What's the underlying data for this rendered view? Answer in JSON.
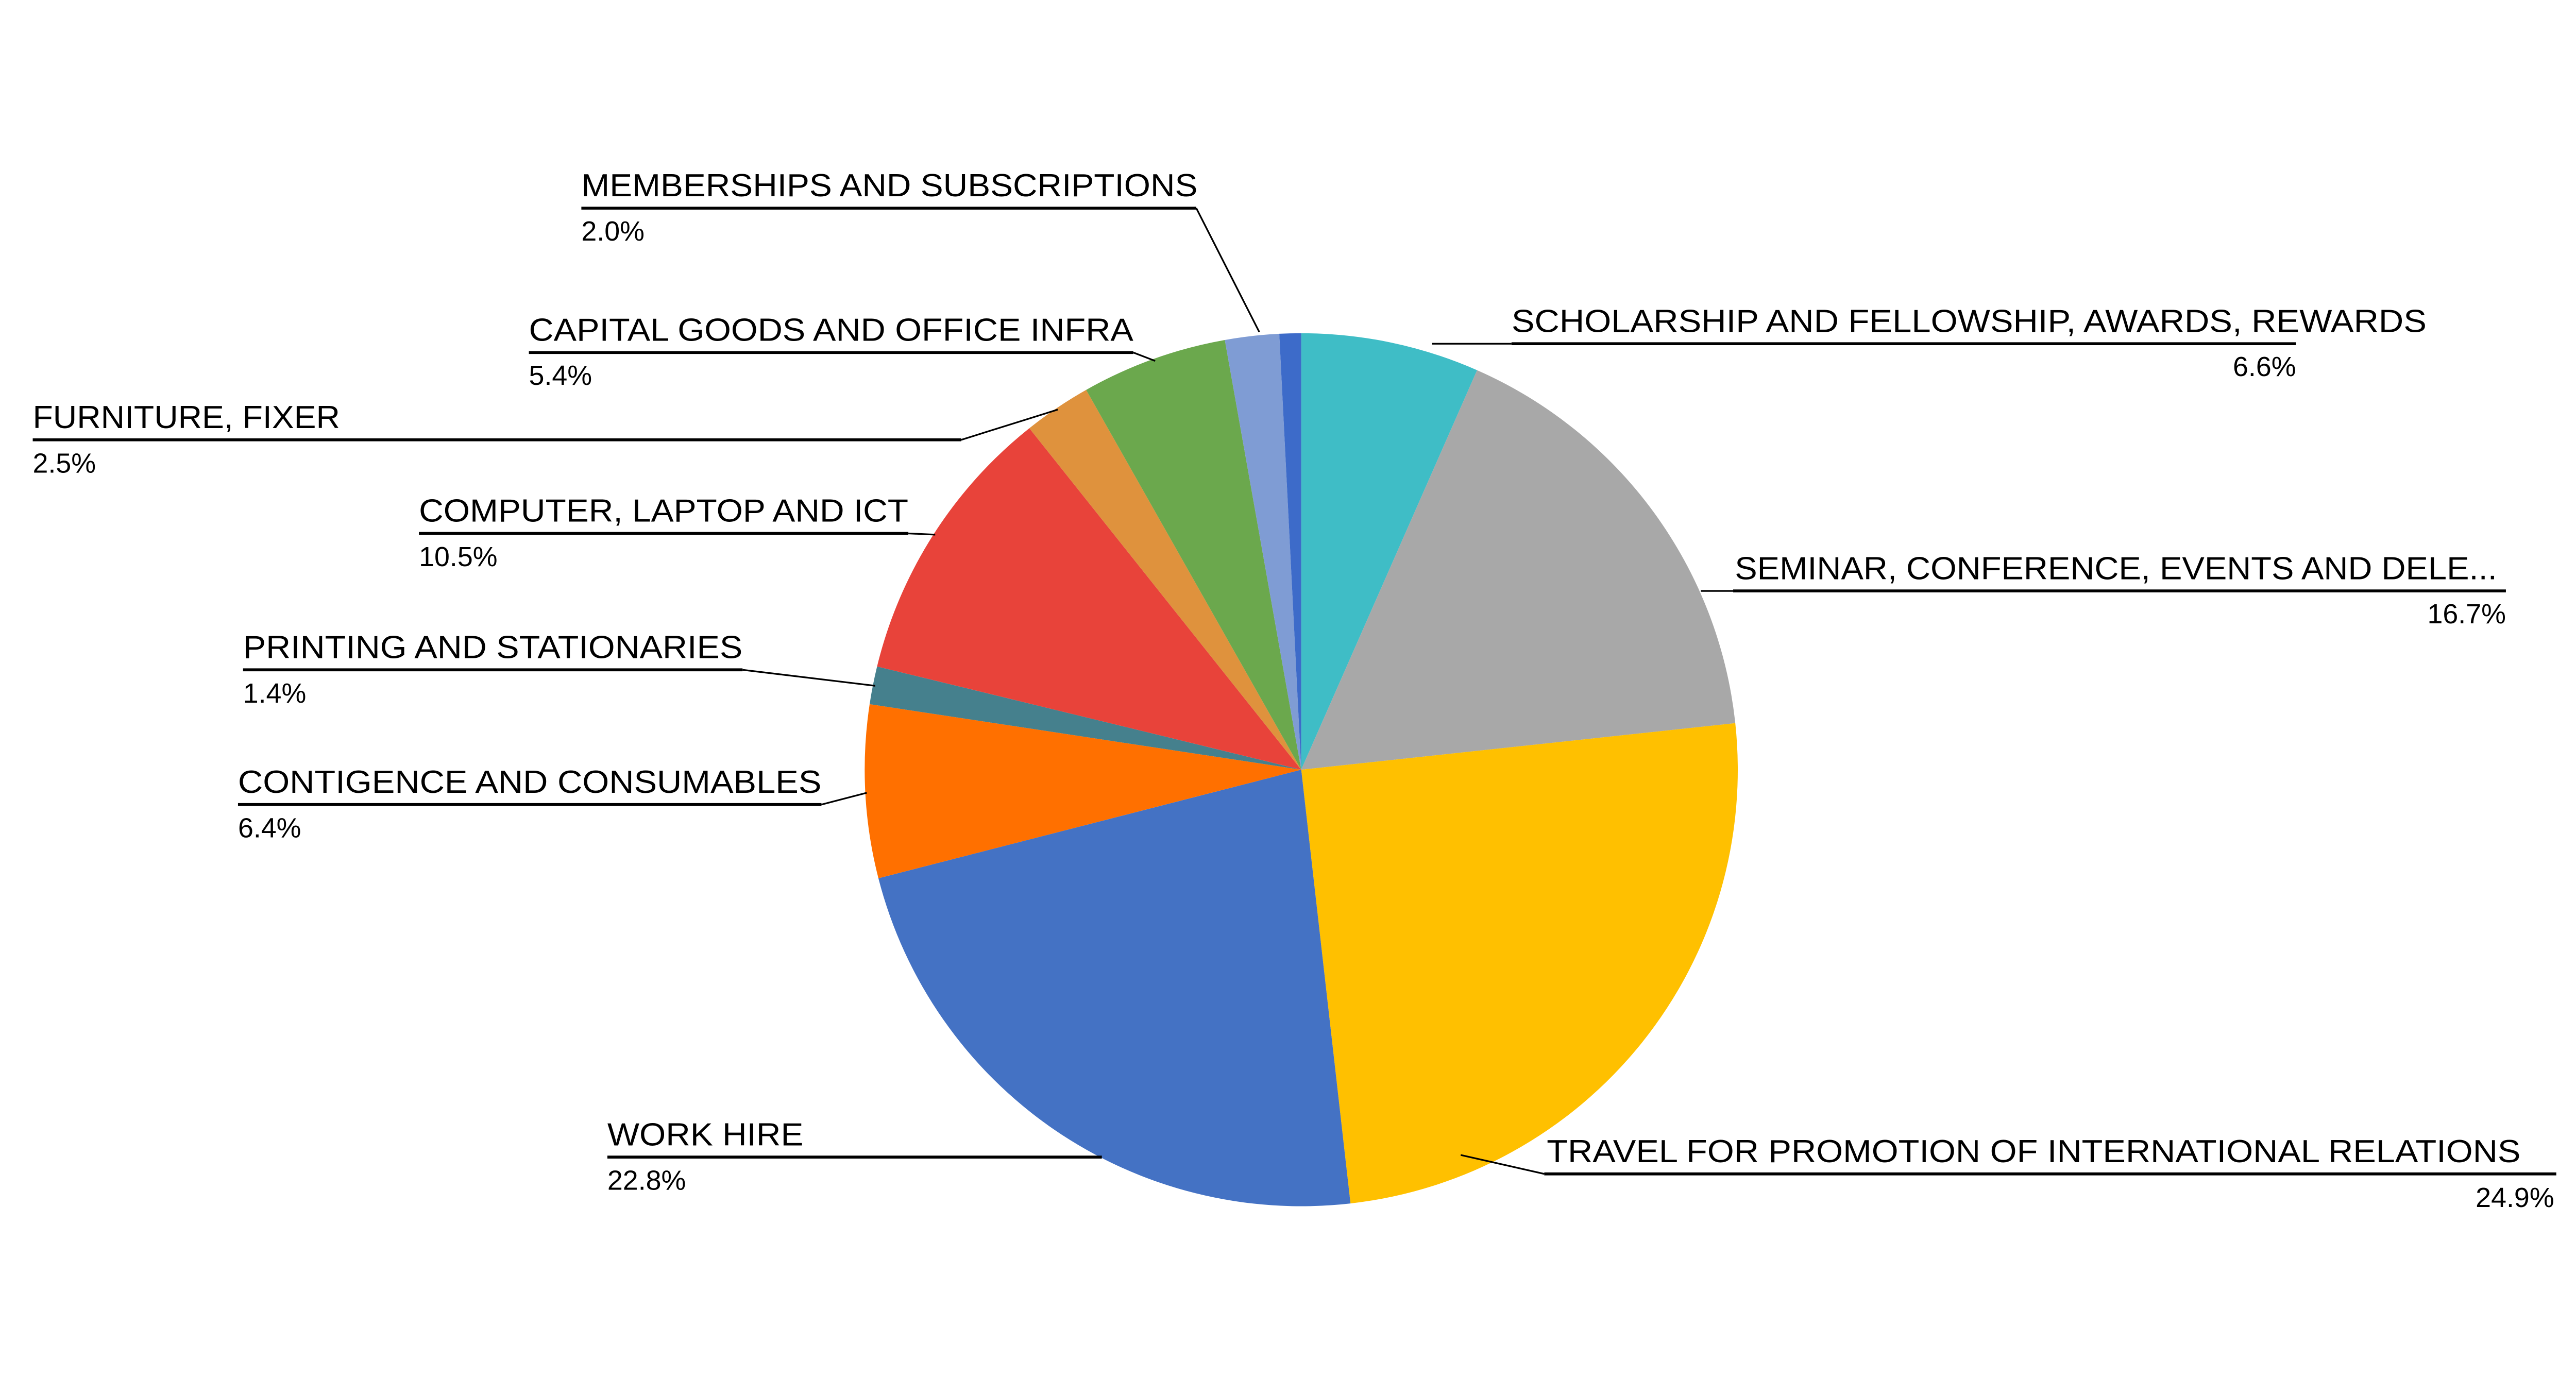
{
  "chart_data": {
    "type": "pie",
    "title": "",
    "legend_position": "none",
    "labels_style": "callout-with-percent",
    "background_color": "#FFFFFF",
    "text_color": "#000000",
    "start_angle_deg": 0,
    "direction": "clockwise",
    "slices": [
      {
        "label": "SCHOLARSHIP AND FELLOWSHIP, AWARDS, REWARDS",
        "value": 6.6,
        "percent_text": "6.6%",
        "color": "#3FBDC6",
        "labeled": true
      },
      {
        "label": "SEMINAR, CONFERENCE, EVENTS AND DELE...",
        "value": 16.7,
        "percent_text": "16.7%",
        "color": "#A8A8A8",
        "labeled": true
      },
      {
        "label": "TRAVEL FOR PROMOTION OF INTERNATIONAL RELATIONS",
        "value": 24.9,
        "percent_text": "24.9%",
        "color": "#FFC000",
        "labeled": true
      },
      {
        "label": "WORK HIRE",
        "value": 22.8,
        "percent_text": "22.8%",
        "color": "#4472C4",
        "labeled": true
      },
      {
        "label": "CONTIGENCE AND CONSUMABLES",
        "value": 6.4,
        "percent_text": "6.4%",
        "color": "#FF7000",
        "labeled": true
      },
      {
        "label": "PRINTING AND STATIONARIES",
        "value": 1.4,
        "percent_text": "1.4%",
        "color": "#45808D",
        "labeled": true
      },
      {
        "label": "COMPUTER, LAPTOP AND ICT",
        "value": 10.5,
        "percent_text": "10.5%",
        "color": "#E8433A",
        "labeled": true
      },
      {
        "label": "FURNITURE, FIXER",
        "value": 2.5,
        "percent_text": "2.5%",
        "color": "#DF923D",
        "labeled": true
      },
      {
        "label": "CAPITAL GOODS AND OFFICE INFRA",
        "value": 5.4,
        "percent_text": "5.4%",
        "color": "#6BA84D",
        "labeled": true
      },
      {
        "label": "MEMBERSHIPS AND SUBSCRIPTIONS",
        "value": 2.0,
        "percent_text": "2.0%",
        "color": "#7F9CD4",
        "labeled": true
      },
      {
        "label": "",
        "value": 0.8,
        "percent_text": "",
        "color": "#3D6BC9",
        "labeled": false
      }
    ]
  }
}
